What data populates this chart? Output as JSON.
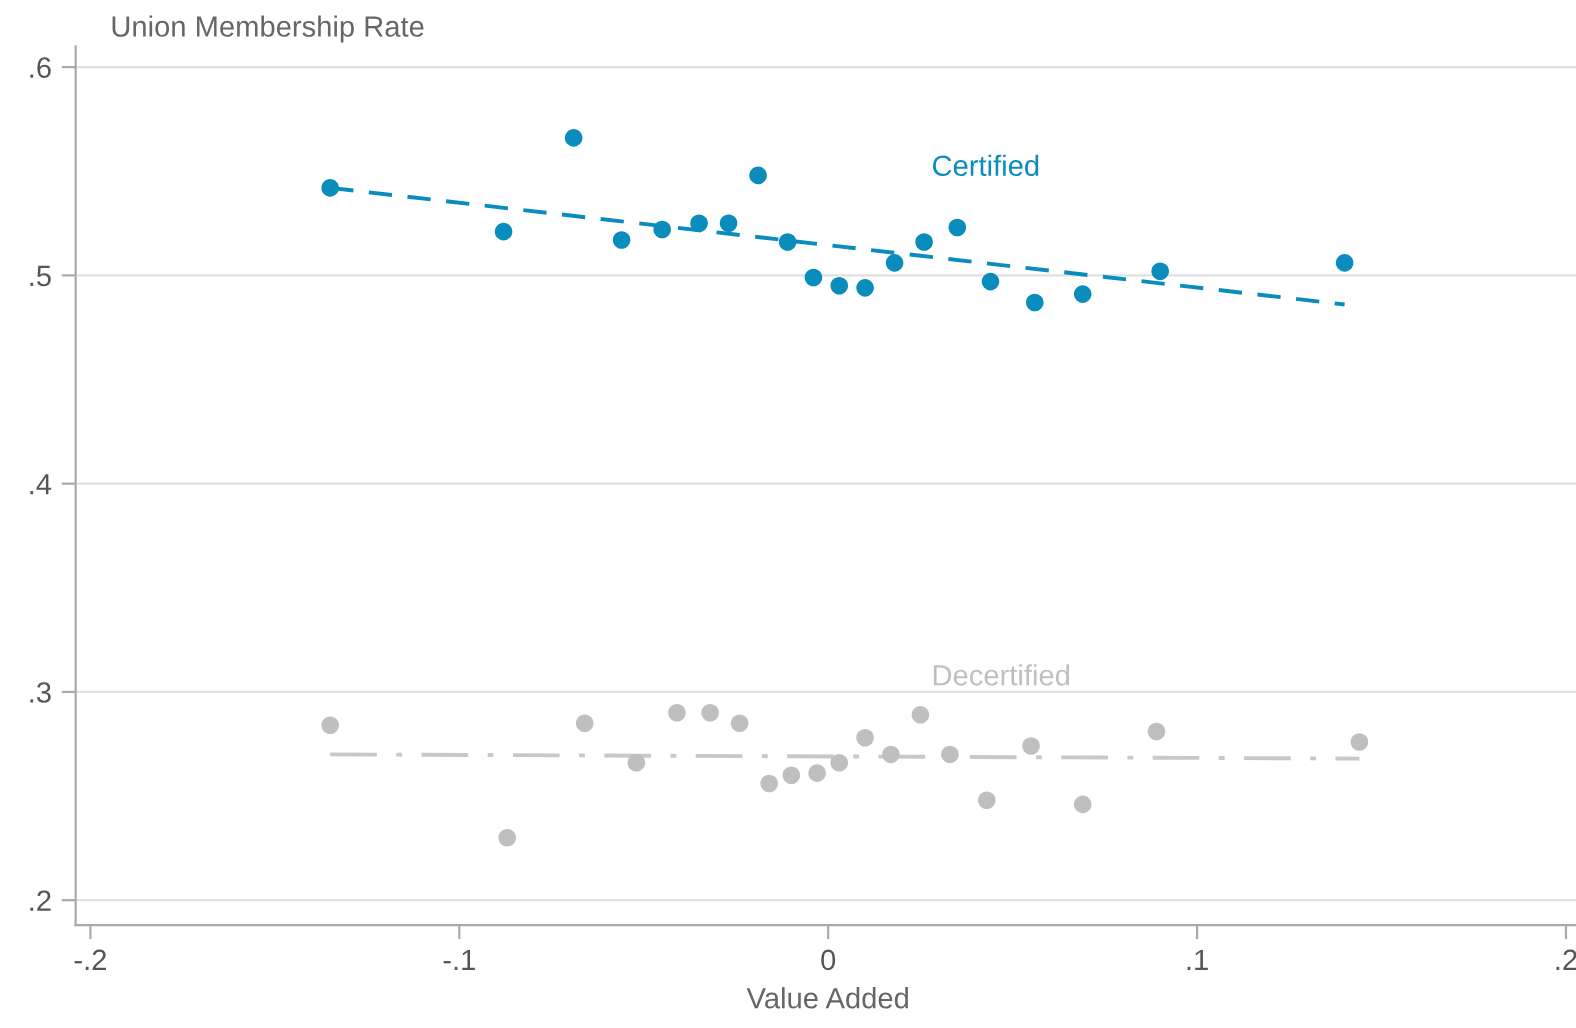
{
  "chart_data": {
    "type": "scatter",
    "ylabel": "Union Membership Rate",
    "xlabel": "Value Added",
    "series": [
      {
        "name": "Certified",
        "marker": "circle",
        "color": "#0a8cbc",
        "x": [
          -0.135,
          -0.088,
          -0.069,
          -0.056,
          -0.045,
          -0.035,
          -0.027,
          -0.019,
          -0.011,
          -0.004,
          0.003,
          0.01,
          0.018,
          0.026,
          0.035,
          0.044,
          0.056,
          0.069,
          0.09,
          0.14
        ],
        "values": [
          0.542,
          0.521,
          0.566,
          0.517,
          0.522,
          0.525,
          0.525,
          0.548,
          0.516,
          0.499,
          0.495,
          0.494,
          0.506,
          0.516,
          0.523,
          0.497,
          0.487,
          0.491,
          0.502,
          0.506
        ]
      },
      {
        "type": "line",
        "color": "#0a8cbc",
        "line_style": "dashed",
        "x": [
          -0.135,
          0.14
        ],
        "values": [
          0.542,
          0.486
        ]
      },
      {
        "name": "Decertified",
        "marker": "circle",
        "color": "#bfbfbf",
        "x": [
          -0.135,
          -0.087,
          -0.066,
          -0.052,
          -0.041,
          -0.032,
          -0.024,
          -0.016,
          -0.01,
          -0.003,
          0.003,
          0.01,
          0.017,
          0.025,
          0.033,
          0.043,
          0.055,
          0.069,
          0.089,
          0.144
        ],
        "values": [
          0.284,
          0.23,
          0.285,
          0.266,
          0.29,
          0.29,
          0.285,
          0.256,
          0.26,
          0.261,
          0.266,
          0.278,
          0.27,
          0.289,
          0.27,
          0.248,
          0.274,
          0.246,
          0.281,
          0.276
        ]
      },
      {
        "type": "line",
        "color": "#c8c8c8",
        "line_style": "dashdot",
        "x": [
          -0.135,
          0.144
        ],
        "values": [
          0.27,
          0.268
        ]
      }
    ],
    "xlim": [
      -0.204,
      0.204
    ],
    "ylim": [
      0.188,
      0.61
    ],
    "xticks": [
      {
        "value": -0.2,
        "label": "-.2"
      },
      {
        "value": -0.1,
        "label": "-.1"
      },
      {
        "value": 0,
        "label": "0"
      },
      {
        "value": 0.1,
        "label": ".1"
      },
      {
        "value": 0.2,
        "label": ".2"
      }
    ],
    "yticks": [
      {
        "value": 0.2,
        "label": ".2"
      },
      {
        "value": 0.3,
        "label": ".3"
      },
      {
        "value": 0.4,
        "label": ".4"
      },
      {
        "value": 0.5,
        "label": ".5"
      },
      {
        "value": 0.6,
        "label": ".6"
      }
    ],
    "grid": "y"
  }
}
